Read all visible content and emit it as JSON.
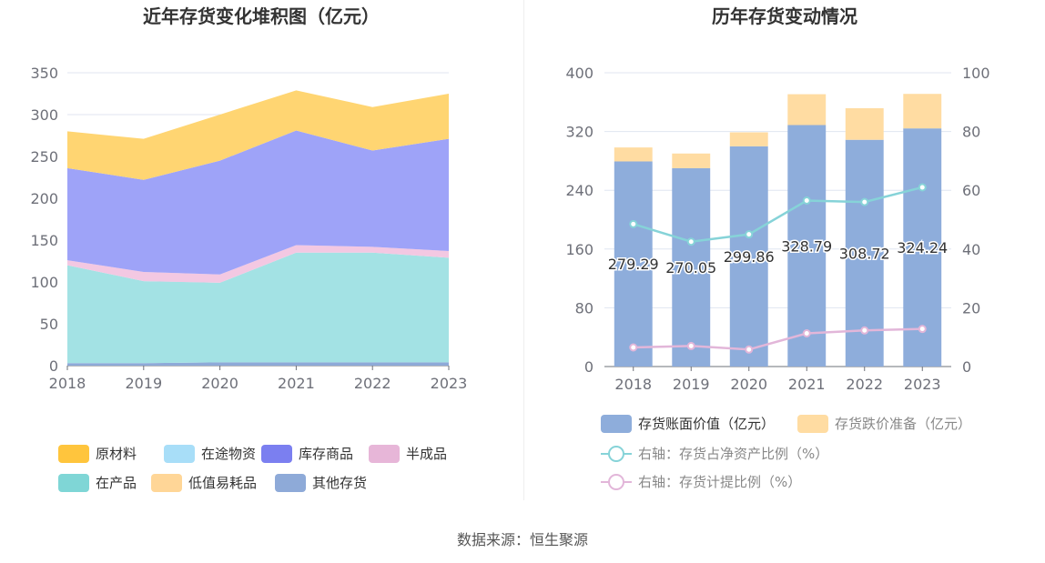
{
  "left_title": "近年存货变化堆积图（亿元）",
  "right_title": "历年存货变动情况",
  "source": "数据来源：恒生聚源",
  "chart_data": [
    {
      "type": "area",
      "stacked": true,
      "title": "近年存货变化堆积图（亿元）",
      "categories": [
        "2018",
        "2019",
        "2020",
        "2021",
        "2022",
        "2023"
      ],
      "ylim": [
        0,
        350
      ],
      "yticks": [
        "0",
        "50",
        "100",
        "150",
        "200",
        "250",
        "300",
        "350"
      ],
      "grid": true,
      "legend_position": "bottom",
      "series": [
        {
          "name": "其他存货",
          "color": "#8eaad8",
          "values": [
            3,
            3,
            4,
            4,
            4,
            4
          ]
        },
        {
          "name": "在产品",
          "color": "#a3e2e4",
          "values": [
            117,
            98,
            95,
            131,
            131,
            125
          ]
        },
        {
          "name": "半成品",
          "color": "#f3c8e2",
          "values": [
            6,
            11,
            10,
            9,
            7,
            8
          ]
        },
        {
          "name": "库存商品",
          "color": "#9ea3f8",
          "values": [
            110,
            110,
            136,
            137,
            115,
            134
          ]
        },
        {
          "name": "原材料",
          "color": "#ffd572",
          "values": [
            44,
            49,
            55,
            48,
            52,
            54
          ]
        },
        {
          "name": "在途物资",
          "color": "#a8def8",
          "values": [
            0,
            0,
            0,
            0,
            0,
            0
          ]
        },
        {
          "name": "低值易耗品",
          "color": "#ffd697",
          "values": [
            0,
            0,
            0,
            0,
            0,
            0
          ]
        }
      ],
      "legend": [
        {
          "name": "原材料",
          "color": "#ffc53d"
        },
        {
          "name": "在途物资",
          "color": "#a8def8"
        },
        {
          "name": "库存商品",
          "color": "#7b7ff0"
        },
        {
          "name": "半成品",
          "color": "#e7b6d8"
        },
        {
          "name": "在产品",
          "color": "#7fd6d6"
        },
        {
          "name": "低值易耗品",
          "color": "#ffd697"
        },
        {
          "name": "其他存货",
          "color": "#8eaad8"
        }
      ]
    },
    {
      "type": "bar",
      "stacked": true,
      "title": "历年存货变动情况",
      "categories": [
        "2018",
        "2019",
        "2020",
        "2021",
        "2022",
        "2023"
      ],
      "ylim": [
        0,
        400
      ],
      "yticks": [
        "0",
        "80",
        "160",
        "240",
        "320",
        "400"
      ],
      "y2lim": [
        0,
        100
      ],
      "y2ticks": [
        "0",
        "20",
        "40",
        "60",
        "80",
        "100"
      ],
      "grid": true,
      "legend_position": "bottom",
      "bar_series": [
        {
          "name": "存货账面价值（亿元）",
          "color": "#8eaddb",
          "values": [
            279.29,
            270.05,
            299.86,
            328.79,
            308.72,
            324.24
          ],
          "labels": [
            "279.29",
            "270.05",
            "299.86",
            "328.79",
            "308.72",
            "324.24"
          ]
        },
        {
          "name": "存货跌价准备（亿元）",
          "color": "#ffdca2",
          "values": [
            19,
            20,
            19,
            42,
            43,
            47
          ]
        }
      ],
      "line_series": [
        {
          "name": "右轴：存货占净资产比例（%）",
          "color": "#86d3d8",
          "values": [
            48.5,
            42.5,
            45,
            56.5,
            56,
            61
          ]
        },
        {
          "name": "右轴：存货计提比例（%）",
          "color": "#e2b6d9",
          "values": [
            6.5,
            7,
            5.8,
            11.3,
            12.3,
            12.8
          ]
        }
      ]
    }
  ]
}
